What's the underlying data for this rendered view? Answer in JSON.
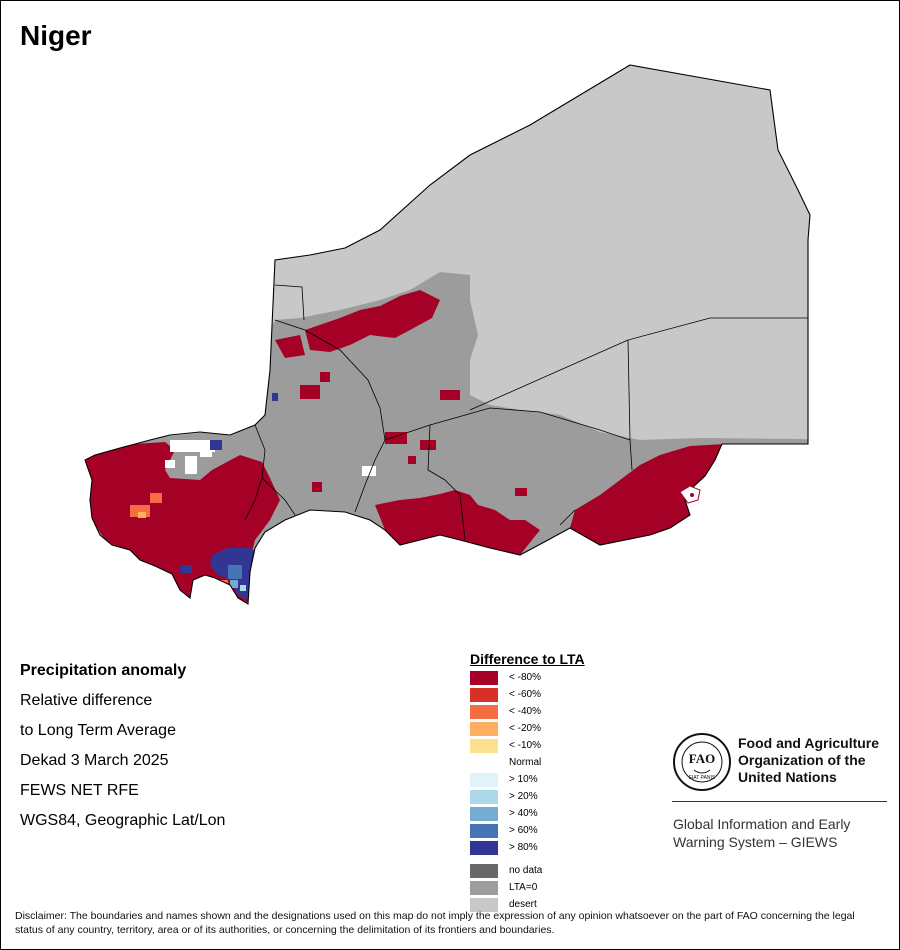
{
  "title": "Niger",
  "info": {
    "heading": "Precipitation anomaly",
    "line1": "Relative difference",
    "line2": "to Long Term Average",
    "period": "Dekad 3 March 2025",
    "source": "FEWS NET RFE",
    "projection": "WGS84, Geographic Lat/Lon"
  },
  "legend": {
    "title": "Difference to LTA",
    "items": [
      {
        "label": "< -80%",
        "color": "#a50026"
      },
      {
        "label": "< -60%",
        "color": "#d73027"
      },
      {
        "label": "< -40%",
        "color": "#f46d43"
      },
      {
        "label": "< -20%",
        "color": "#fdae61"
      },
      {
        "label": "< -10%",
        "color": "#fee090"
      },
      {
        "label": "Normal",
        "color": "#ffffff"
      },
      {
        "label": "> 10%",
        "color": "#e0f3f8"
      },
      {
        "label": "> 20%",
        "color": "#abd9e9"
      },
      {
        "label": "> 40%",
        "color": "#74add1"
      },
      {
        "label": "> 60%",
        "color": "#4575b4"
      },
      {
        "label": "> 80%",
        "color": "#313695"
      },
      {
        "label": "no data",
        "color": "#686868"
      },
      {
        "label": "LTA=0",
        "color": "#9c9c9c"
      },
      {
        "label": "desert",
        "color": "#c8c8c8"
      }
    ]
  },
  "fao": {
    "name_line1": "Food and Agriculture",
    "name_line2": "Organization of the",
    "name_line3": "United Nations",
    "logo_text": "FAO",
    "motto": "FIAT PANIS",
    "giews_line1": "Global Information and Early",
    "giews_line2": "Warning System – GIEWS"
  },
  "disclaimer": "Disclaimer: The boundaries and names shown and the designations used on this map do not imply the expression of any opinion whatsoever on the part of FAO concerning the legal status of any country, territory, area or of its authorities, or concerning the delimitation of its frontiers and boundaries.",
  "colors": {
    "deficit_extreme": "#a50026",
    "surplus_extreme": "#313695",
    "lta_zero": "#9c9c9c",
    "desert": "#c8c8c8",
    "boundary": "#000000"
  }
}
